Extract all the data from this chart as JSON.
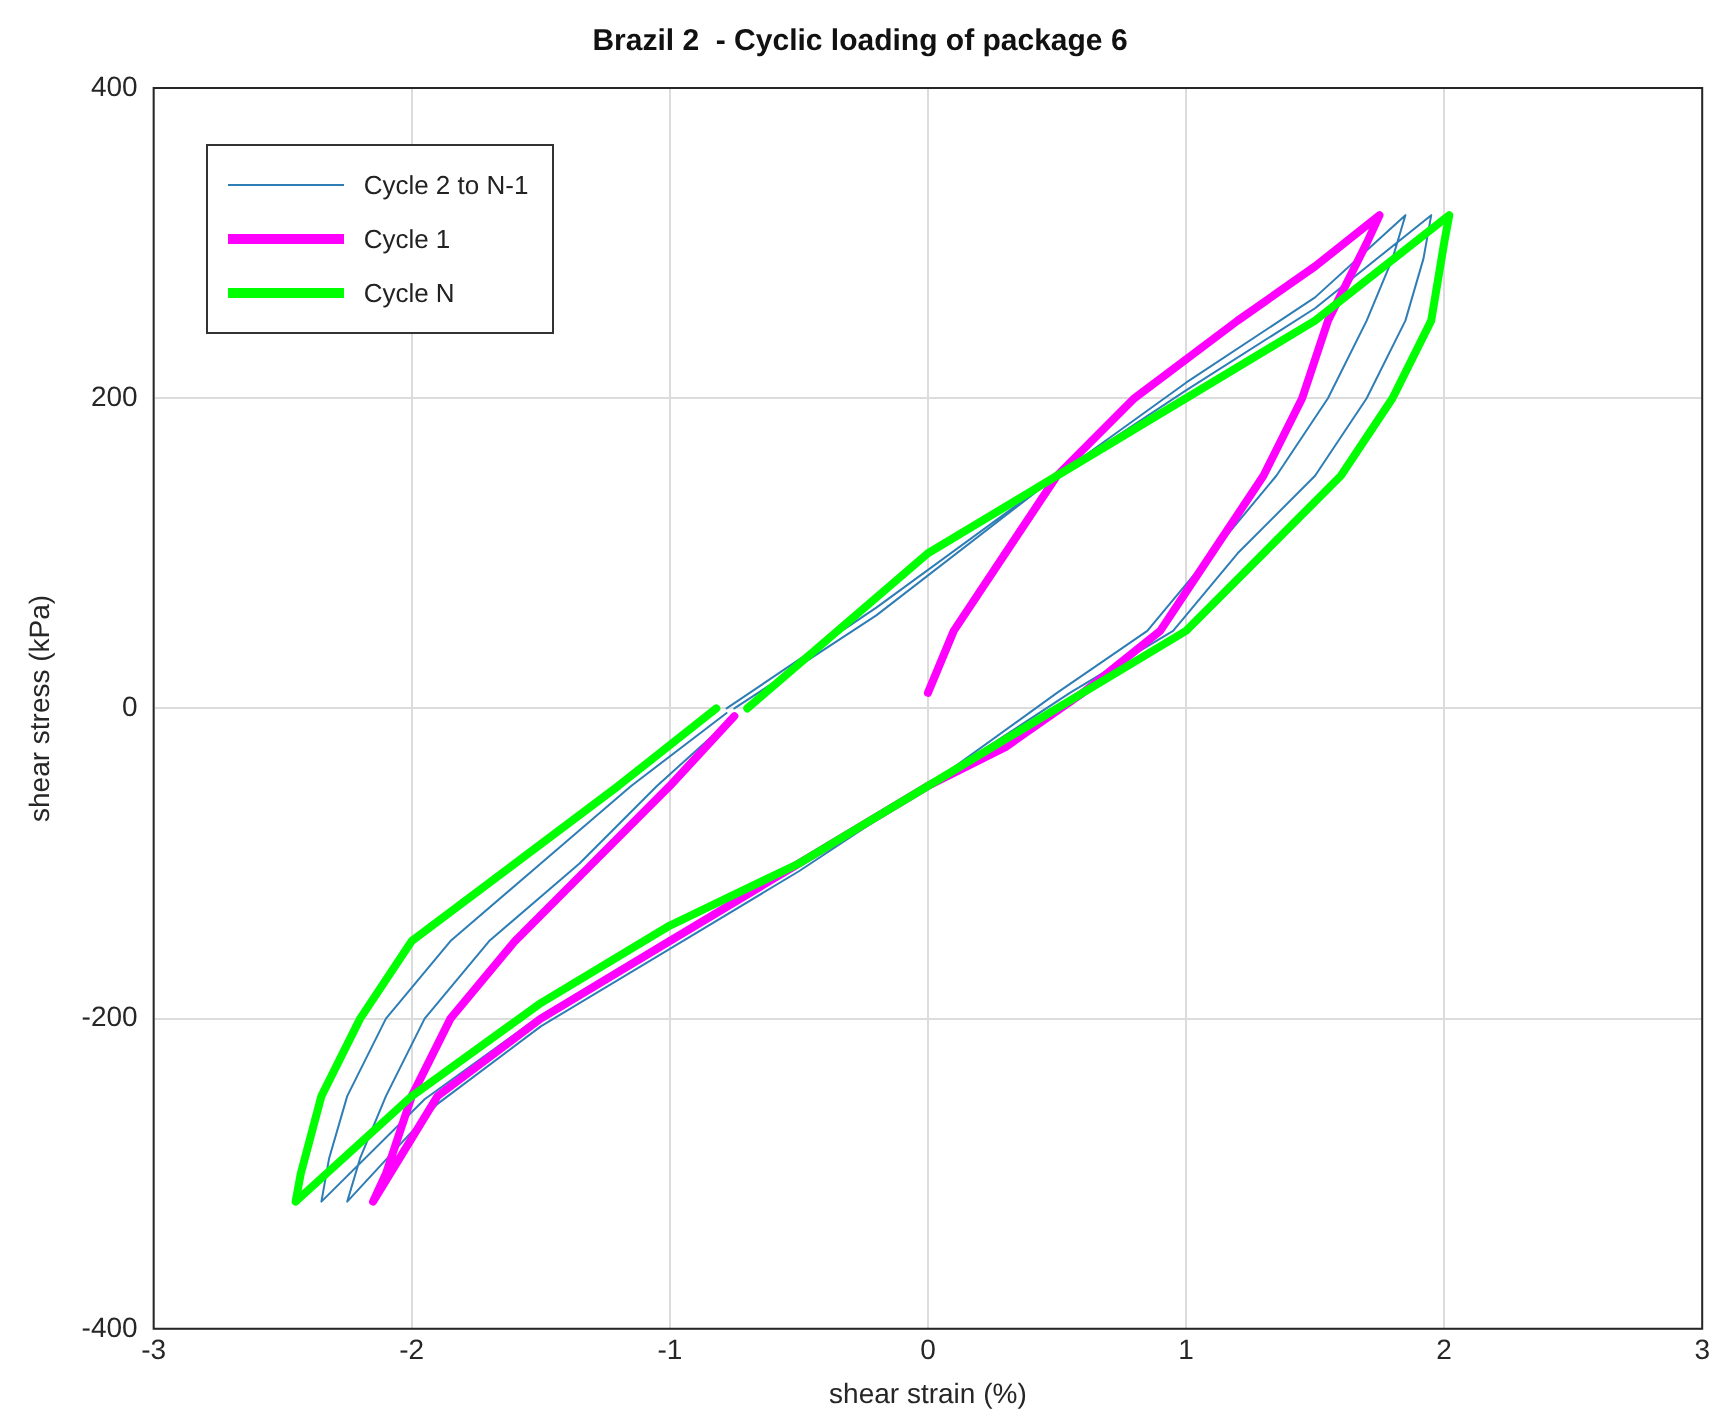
{
  "chart_data": {
    "type": "line",
    "title": "Brazil 2  - Cyclic loading of package 6",
    "xlabel": "shear strain (%)",
    "ylabel": "shear stress (kPa)",
    "xlim": [
      -3,
      3
    ],
    "xticks": [
      -3,
      -2,
      -1,
      0,
      1,
      2,
      3
    ],
    "ylim": [
      -400,
      400
    ],
    "yticks": [
      -400,
      -200,
      0,
      200,
      400
    ],
    "grid": true,
    "legend": "top left",
    "marker": "none",
    "line_style": "solid",
    "series": [
      {
        "name": "Cycle 2 to N-1",
        "color": "#2e7db5",
        "x": [
          -0.75,
          -0.2,
          0.5,
          1.0,
          1.5,
          1.85,
          1.8,
          1.7,
          1.55,
          1.35,
          1.1,
          0.85,
          0.5,
          0,
          -0.5,
          -1,
          -1.5,
          -1.9,
          -2.25,
          -2.2,
          -2.1,
          -1.95,
          -1.7,
          -1.35,
          -1.05,
          -0.75,
          null,
          -0.78,
          -0.2,
          0.5,
          1.0,
          1.5,
          1.95,
          1.92,
          1.85,
          1.7,
          1.5,
          1.2,
          0.95,
          0.55,
          0,
          -0.5,
          -1,
          -1.5,
          -1.95,
          -2.35,
          -2.32,
          -2.25,
          -2.1,
          -1.85,
          -1.5,
          -1.15,
          -0.78
        ],
        "values": [
          0,
          60,
          150,
          210,
          265,
          318,
          290,
          250,
          200,
          150,
          100,
          50,
          10,
          -50,
          -105,
          -155,
          -205,
          -255,
          -318,
          -290,
          -250,
          -200,
          -150,
          -100,
          -50,
          -5,
          null,
          0,
          65,
          150,
          205,
          258,
          318,
          290,
          250,
          200,
          150,
          100,
          50,
          10,
          -50,
          -102,
          -148,
          -198,
          -252,
          -318,
          -290,
          -250,
          -200,
          -150,
          -100,
          -50,
          -3
        ]
      },
      {
        "name": "Cycle 1",
        "color": "#ff00ff",
        "x": [
          0,
          0.1,
          0.3,
          0.5,
          0.8,
          1.2,
          1.5,
          1.75,
          1.7,
          1.55,
          1.45,
          1.3,
          1.1,
          0.9,
          0.6,
          0.3,
          0,
          -0.5,
          -1,
          -1.5,
          -1.9,
          -2.15,
          -2.1,
          -2.0,
          -1.85,
          -1.6,
          -1.3,
          -1,
          -0.75
        ],
        "values": [
          10,
          50,
          100,
          150,
          200,
          250,
          285,
          318,
          300,
          250,
          200,
          150,
          100,
          50,
          10,
          -25,
          -50,
          -100,
          -150,
          -200,
          -250,
          -318,
          -300,
          -250,
          -200,
          -150,
          -100,
          -50,
          -5
        ]
      },
      {
        "name": "Cycle N",
        "color": "#00ff00",
        "x": [
          -0.7,
          0,
          0.5,
          1,
          1.5,
          2.02,
          2.0,
          1.95,
          1.8,
          1.6,
          1.3,
          1.0,
          0.6,
          0.3,
          0,
          -0.5,
          -1,
          -1.5,
          -2,
          -2.45,
          -2.43,
          -2.35,
          -2.2,
          -2,
          -1.6,
          -1.2,
          -0.82
        ],
        "values": [
          0,
          100,
          150,
          200,
          250,
          318,
          300,
          250,
          200,
          150,
          100,
          50,
          10,
          -20,
          -50,
          -100,
          -140,
          -190,
          -250,
          -318,
          -300,
          -250,
          -200,
          -150,
          -100,
          -50,
          0
        ]
      }
    ]
  }
}
